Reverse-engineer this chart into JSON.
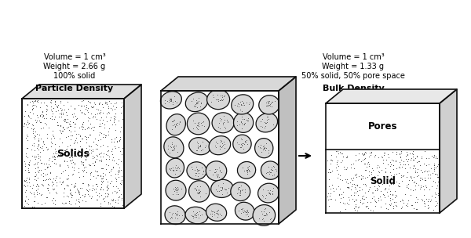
{
  "particle_density_label": "Particle Density",
  "bulk_density_label": "Bulk Density",
  "pd_line1": "100% solid",
  "pd_line2": "Weight = 2.66 g",
  "pd_line3": "Volume = 1 cm³",
  "bd_line1": "50% solid, 50% pore space",
  "bd_line2": "Weight = 1.33 g",
  "bd_line3": "Volume = 1 cm³",
  "solids_label": "Solids",
  "pores_label": "Pores",
  "solid_label": "Solid",
  "bg_color": "#ffffff",
  "box_edge_color": "#111111",
  "stipple_color": "#333333",
  "pebble_fill": "#d8d8d8",
  "pebble_edge": "#111111",
  "text_color": "#000000"
}
